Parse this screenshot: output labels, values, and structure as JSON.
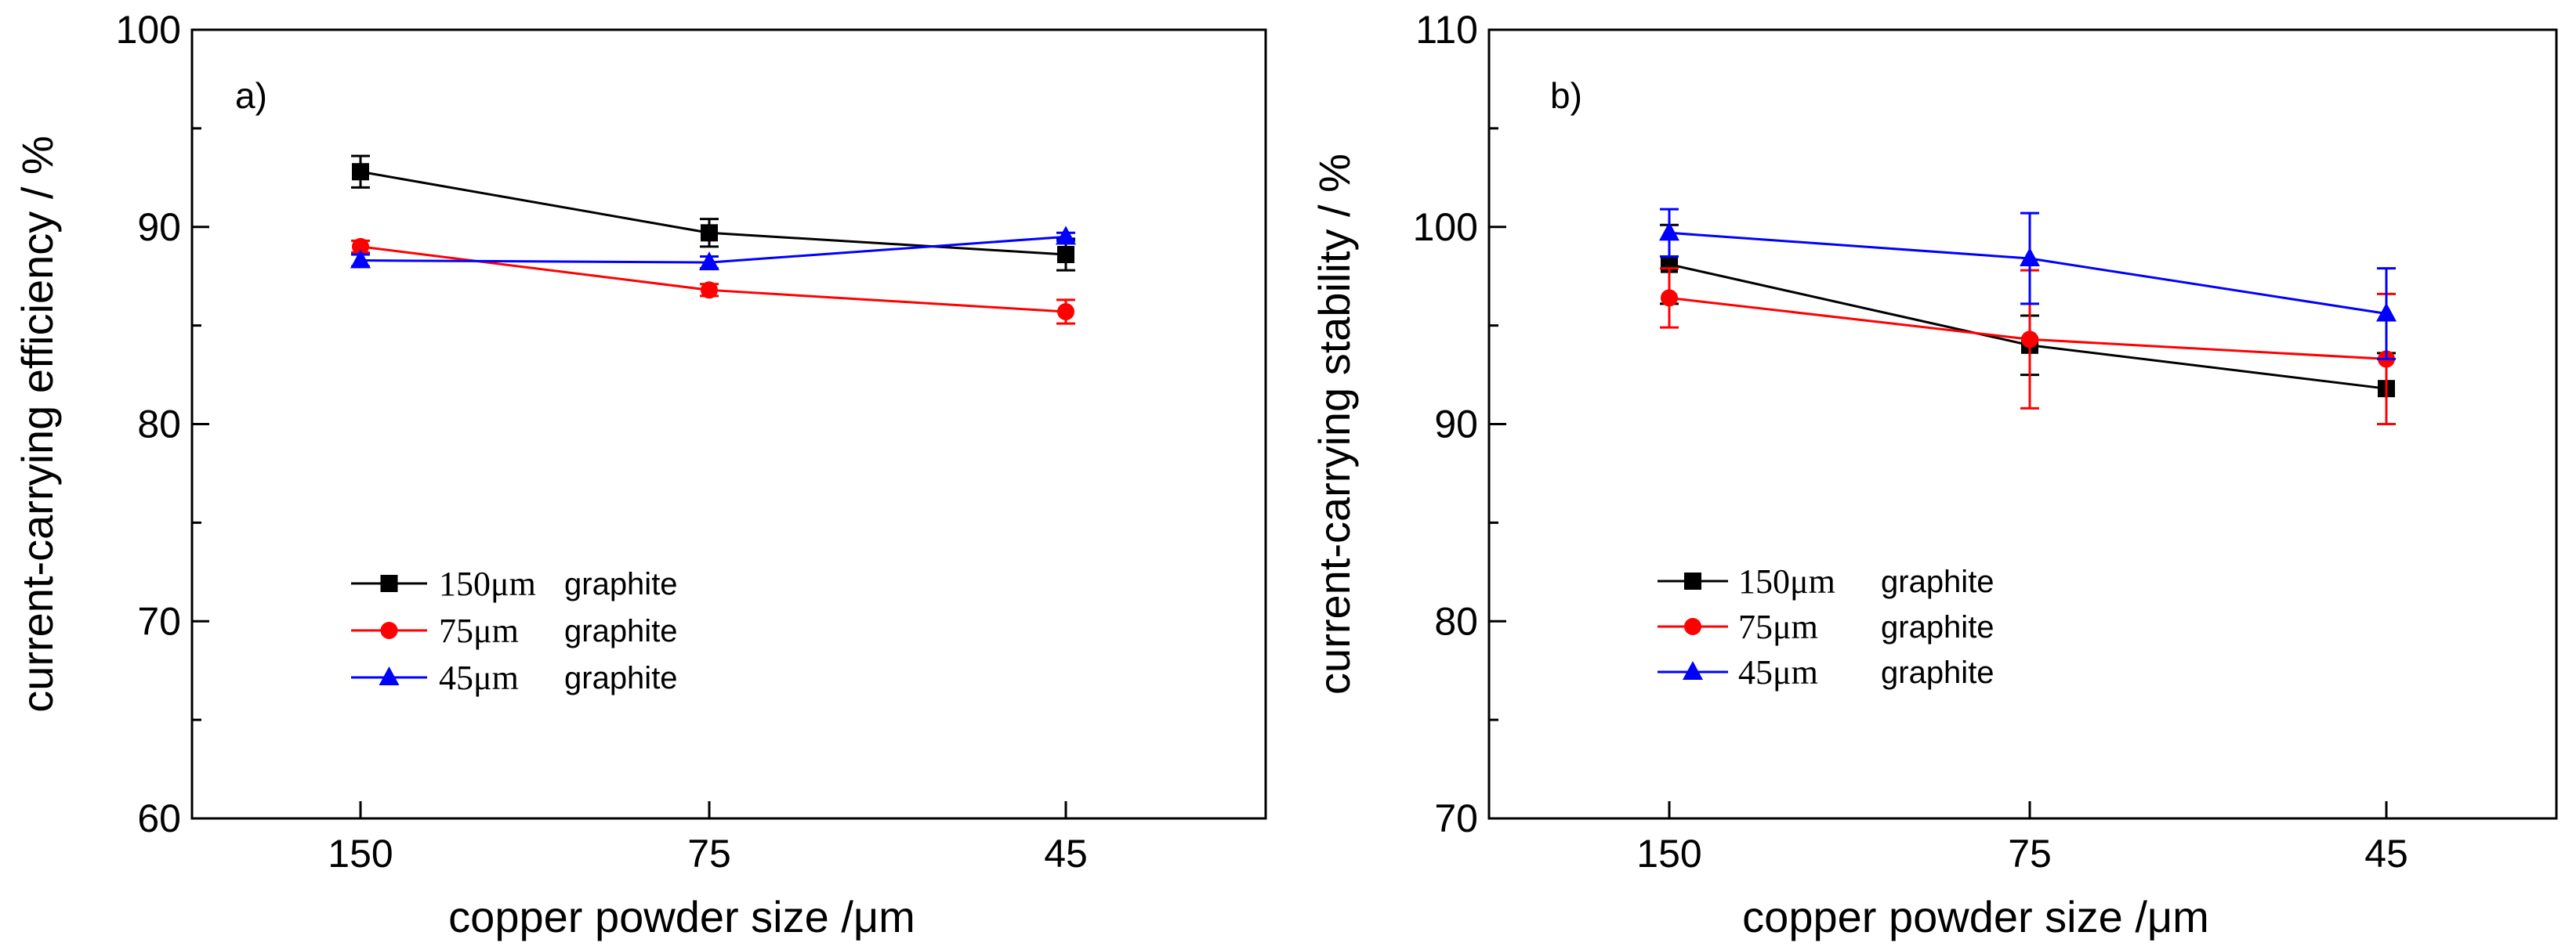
{
  "chart_data": [
    {
      "type": "line",
      "panel_label": "a)",
      "xlabel": "copper powder size /μm",
      "ylabel": "current-carrying efficiency / %",
      "categories": [
        "150",
        "75",
        "45"
      ],
      "ylim": [
        60,
        100
      ],
      "yticks": [
        "60",
        "70",
        "80",
        "90",
        "100"
      ],
      "grid": false,
      "legend_position": "lower-left",
      "series": [
        {
          "size": "150μm",
          "material": "graphite",
          "color": "#000000",
          "marker": "square",
          "values": [
            92.8,
            89.7,
            88.6
          ],
          "errors": [
            0.8,
            0.7,
            0.8
          ]
        },
        {
          "size": "75μm",
          "material": "graphite",
          "color": "#ff0000",
          "marker": "circle",
          "values": [
            89.0,
            86.8,
            85.7
          ],
          "errors": [
            0.3,
            0.3,
            0.6
          ]
        },
        {
          "size": "45μm",
          "material": "graphite",
          "color": "#0000ff",
          "marker": "triangle",
          "values": [
            88.3,
            88.2,
            89.5
          ],
          "errors": [
            0.3,
            0.3,
            0.2
          ]
        }
      ]
    },
    {
      "type": "line",
      "panel_label": "b)",
      "xlabel": "copper powder size /μm",
      "ylabel": "current-carrying stability / %",
      "categories": [
        "150",
        "75",
        "45"
      ],
      "ylim": [
        70,
        110
      ],
      "yticks": [
        "70",
        "80",
        "90",
        "100",
        "110"
      ],
      "grid": false,
      "legend_position": "lower-left",
      "series": [
        {
          "size": "150μm",
          "material": "graphite",
          "color": "#000000",
          "marker": "square",
          "values": [
            98.1,
            94.0,
            91.8
          ],
          "errors": [
            2.0,
            1.5,
            1.8
          ]
        },
        {
          "size": "75μm",
          "material": "graphite",
          "color": "#ff0000",
          "marker": "circle",
          "values": [
            96.4,
            94.3,
            93.3
          ],
          "errors": [
            1.5,
            3.5,
            3.3
          ]
        },
        {
          "size": "45μm",
          "material": "graphite",
          "color": "#0000ff",
          "marker": "triangle",
          "values": [
            99.7,
            98.4,
            95.6
          ],
          "errors": [
            1.2,
            2.3,
            2.3
          ]
        }
      ]
    }
  ]
}
